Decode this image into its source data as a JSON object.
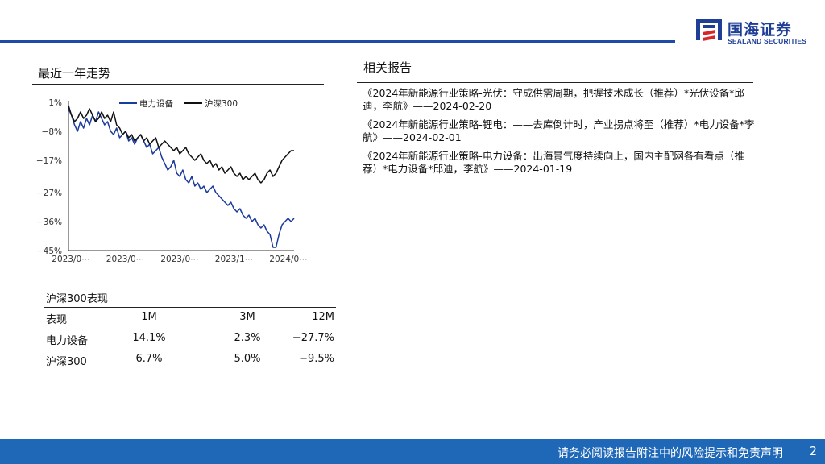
{
  "header": {
    "logo_cn": "国海证券",
    "logo_en": "SEALAND SECURITIES",
    "brand_color": "#1f4aa8"
  },
  "trend_section": {
    "title": "最近一年走势"
  },
  "related_section": {
    "title": "相关报告"
  },
  "chart_data": {
    "type": "line",
    "legend_position": "top",
    "grid": false,
    "ylim": [
      -45,
      1
    ],
    "yticks": [
      "1%",
      "-8%",
      "-17%",
      "-27%",
      "-36%",
      "-45%"
    ],
    "yticks_values": [
      1,
      -8,
      -17,
      -27,
      -36,
      -45
    ],
    "xticks": [
      "2023/0⋯",
      "2023/0⋯",
      "2023/0⋯",
      "2023/1⋯",
      "2024/0⋯"
    ],
    "series": [
      {
        "name": "电力设备",
        "color": "#1a3a9c",
        "values": [
          -1,
          -3,
          -6,
          -8,
          -5,
          -7,
          -4,
          -6,
          -3,
          -5,
          -2,
          -4,
          -6,
          -5,
          -8,
          -9,
          -7,
          -10,
          -9,
          -8,
          -11,
          -10,
          -12,
          -10,
          -9,
          -11,
          -13,
          -12,
          -15,
          -14,
          -13,
          -16,
          -18,
          -20,
          -19,
          -17,
          -21,
          -22,
          -20,
          -23,
          -24,
          -22,
          -25,
          -24,
          -26,
          -25,
          -27,
          -26,
          -25,
          -27,
          -28,
          -29,
          -30,
          -31,
          -30,
          -32,
          -33,
          -32,
          -34,
          -35,
          -34,
          -36,
          -35,
          -37,
          -38,
          -37,
          -39,
          -40,
          -44,
          -44,
          -40,
          -37,
          -36,
          -35,
          -36,
          -35
        ]
      },
      {
        "name": "沪深300",
        "color": "#111111",
        "values": [
          0,
          -3,
          -5,
          -4,
          -2,
          -4,
          -3,
          -1,
          -3,
          -5,
          -4,
          -2,
          -4,
          -3,
          -5,
          -2,
          -6,
          -7,
          -9,
          -8,
          -10,
          -9,
          -11,
          -10,
          -9,
          -11,
          -10,
          -12,
          -11,
          -10,
          -13,
          -12,
          -11,
          -12,
          -13,
          -14,
          -13,
          -15,
          -14,
          -13,
          -15,
          -16,
          -17,
          -16,
          -15,
          -17,
          -18,
          -17,
          -19,
          -18,
          -20,
          -19,
          -21,
          -20,
          -19,
          -21,
          -22,
          -21,
          -23,
          -22,
          -23,
          -22,
          -21,
          -23,
          -24,
          -23,
          -21,
          -20,
          -22,
          -21,
          -19,
          -17,
          -16,
          -15,
          -14,
          -14
        ]
      }
    ]
  },
  "performance_table": {
    "caption": "沪深300表现",
    "headers": [
      "表现",
      "1M",
      "3M",
      "12M"
    ],
    "rows": [
      {
        "name": "电力设备",
        "m1": "14.1%",
        "m3": "2.3%",
        "m12": "−27.7%"
      },
      {
        "name": "沪深300",
        "m1": "6.7%",
        "m3": "5.0%",
        "m12": "−9.5%"
      }
    ]
  },
  "reports": [
    "《2024年新能源行业策略-光伏：守成供需周期，把握技术成长（推荐）*光伏设备*邱迪，李航》——2024-02-20",
    "《2024年新能源行业策略-锂电：——去库倒计时，产业拐点将至（推荐）*电力设备*李航》——2024-02-01",
    "《2024年新能源行业策略-电力设备：出海景气度持续向上，国内主配网各有看点（推荐）*电力设备*邱迪，李航》——2024-01-19"
  ],
  "footer": {
    "disclaimer": "请务必阅读报告附注中的风险提示和免责声明",
    "page": "2"
  }
}
